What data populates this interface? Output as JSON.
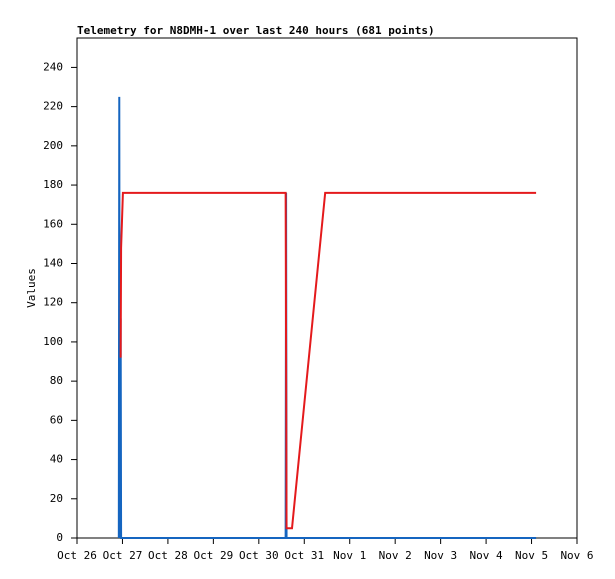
{
  "chart_data": {
    "type": "line",
    "title": "Telemetry for N8DMH-1 over last 240 hours (681 points)",
    "y_label": "Values",
    "x": [
      0.92,
      0.93,
      0.94,
      0.95,
      0.96,
      0.97,
      1.01,
      4.59,
      4.6,
      4.61,
      4.64,
      4.73,
      5.46,
      10.1
    ],
    "series": [
      {
        "name": "",
        "color": "#1565c0",
        "values": [
          0,
          225,
          0,
          34,
          112,
          0,
          0,
          0,
          176,
          0,
          0,
          0,
          0,
          0
        ]
      },
      {
        "name": "",
        "color": "#e41a1c",
        "values": [
          null,
          null,
          null,
          null,
          92,
          148,
          176,
          176,
          92,
          5,
          5,
          5,
          176,
          176
        ]
      }
    ],
    "xlim": [
      0,
      11
    ],
    "xticks": [
      {
        "value": 0,
        "label": "Oct 26"
      },
      {
        "value": 1,
        "label": "Oct 27"
      },
      {
        "value": 2,
        "label": "Oct 28"
      },
      {
        "value": 3,
        "label": "Oct 29"
      },
      {
        "value": 4,
        "label": "Oct 30"
      },
      {
        "value": 5,
        "label": "Oct 31"
      },
      {
        "value": 6,
        "label": "Nov 1"
      },
      {
        "value": 7,
        "label": "Nov 2"
      },
      {
        "value": 8,
        "label": "Nov 3"
      },
      {
        "value": 9,
        "label": "Nov 4"
      },
      {
        "value": 10,
        "label": "Nov 5"
      },
      {
        "value": 11,
        "label": "Nov 6"
      }
    ],
    "ylim": [
      0,
      255
    ],
    "yticks": [
      0,
      20,
      40,
      60,
      80,
      100,
      120,
      140,
      160,
      180,
      200,
      220,
      240
    ]
  }
}
